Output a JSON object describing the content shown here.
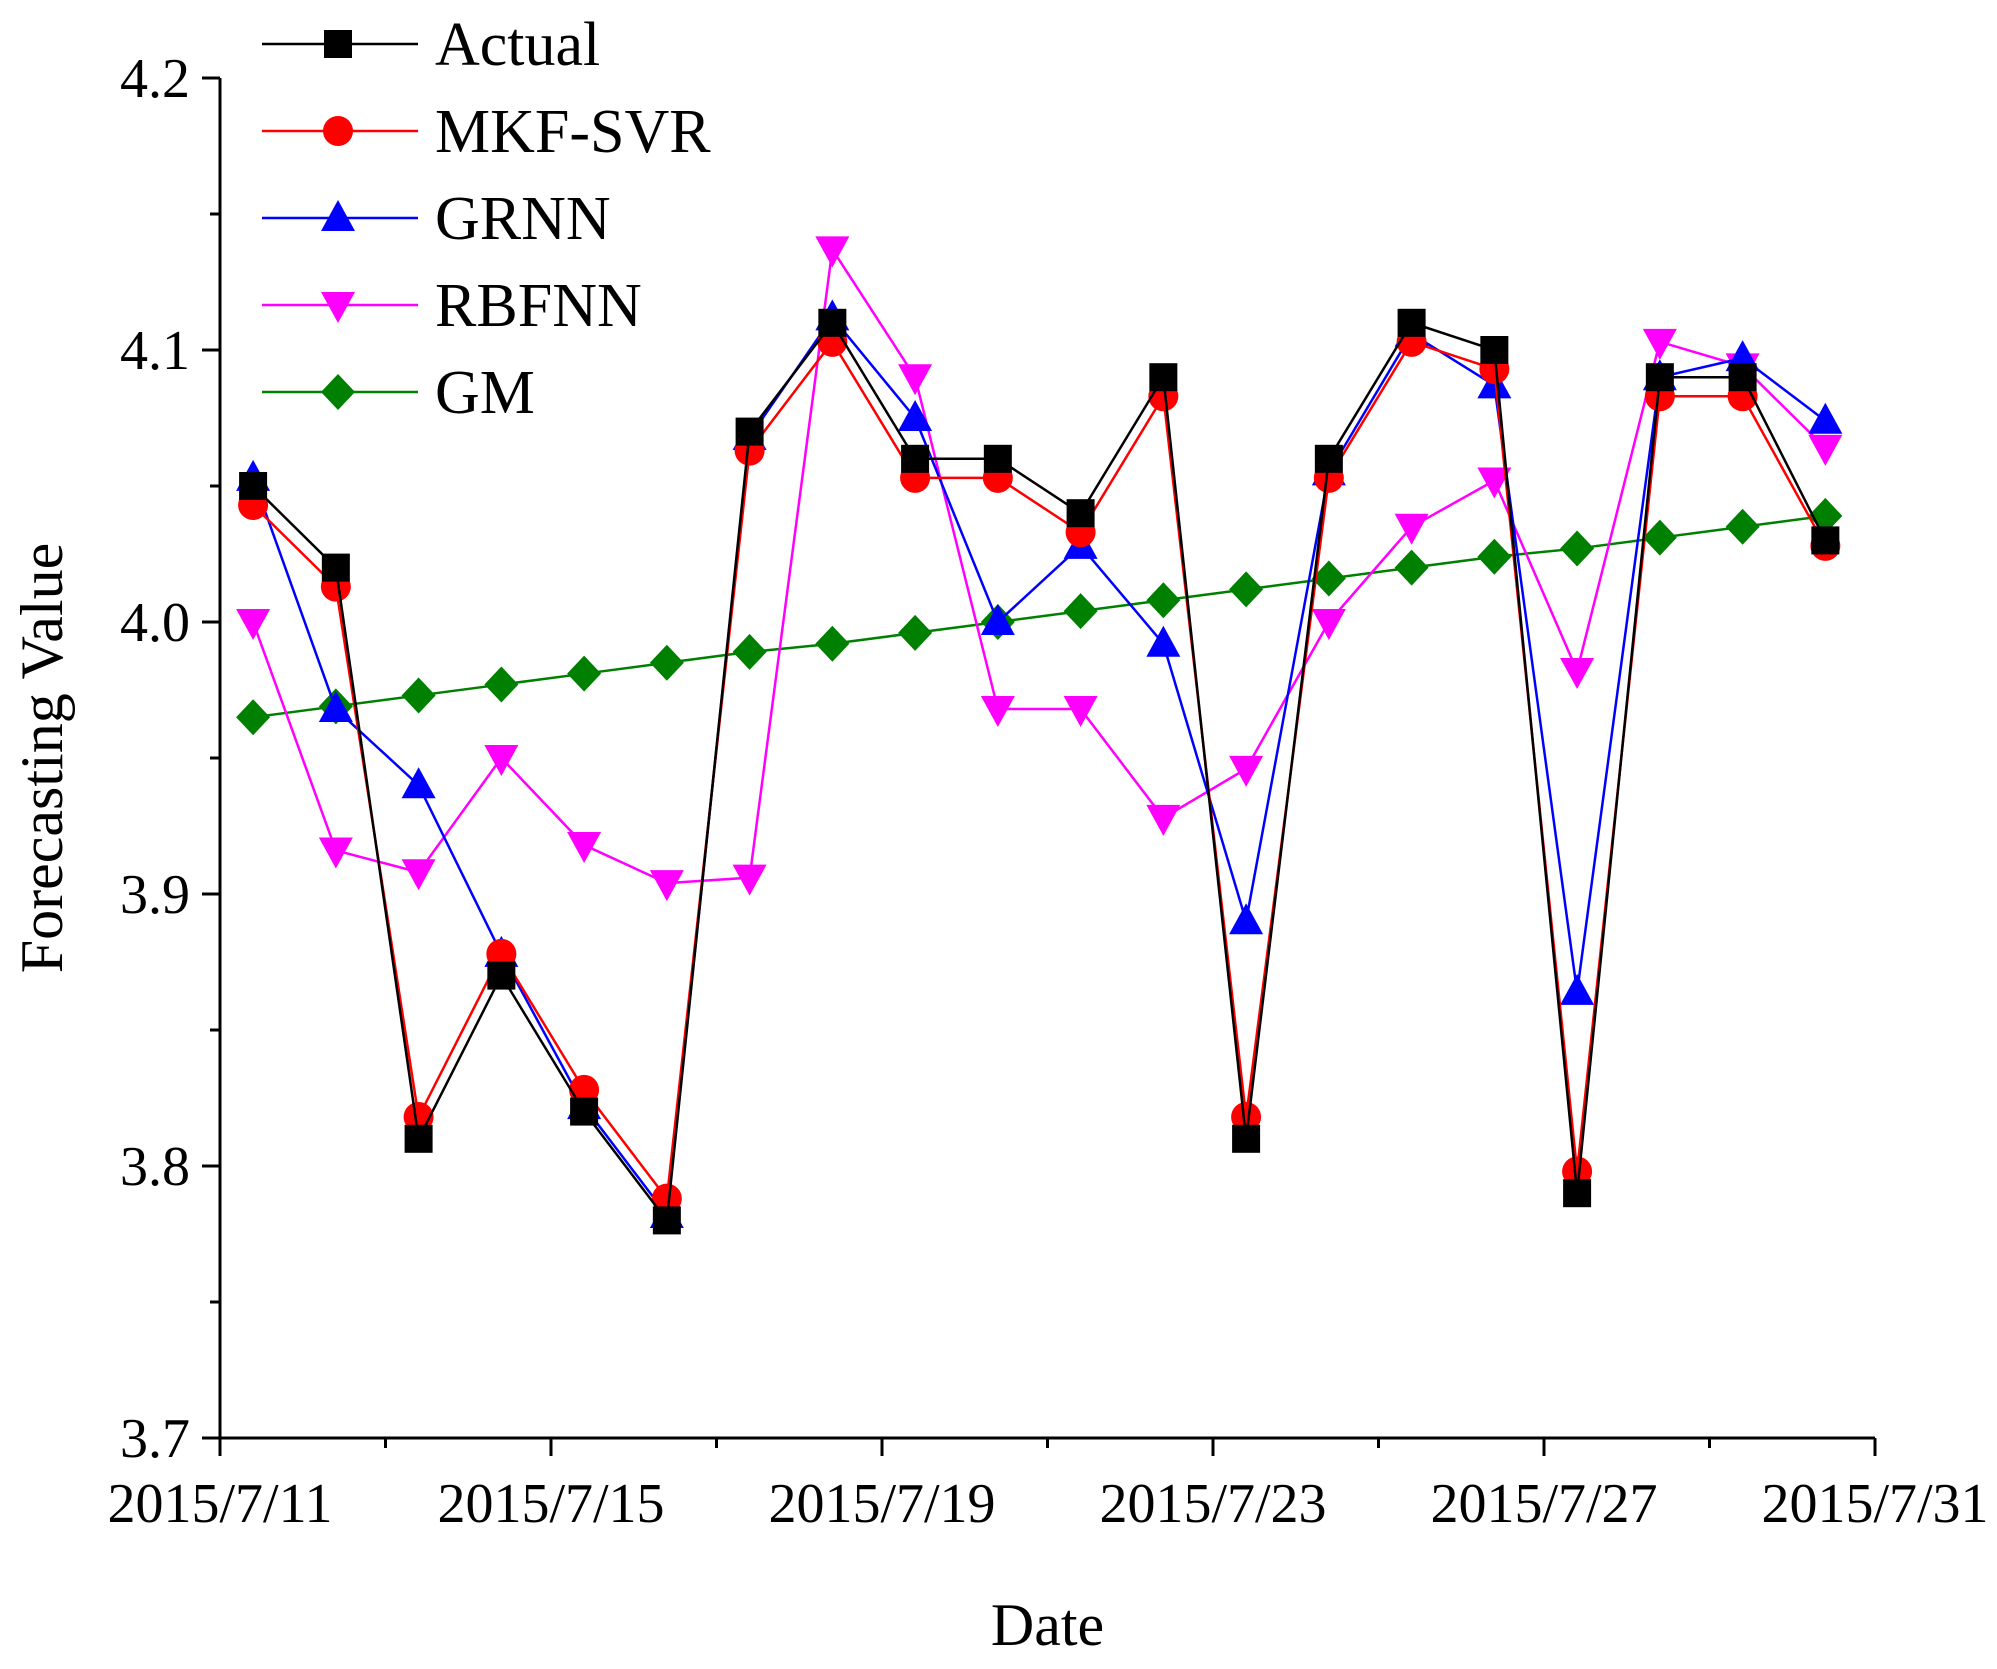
{
  "chart_data": {
    "type": "line",
    "xlabel": "Date",
    "ylabel": "Forecasting Value",
    "x_tick_labels": [
      "2015/7/11",
      "2015/7/15",
      "2015/7/19",
      "2015/7/23",
      "2015/7/27",
      "2015/7/31"
    ],
    "x_tick_values": [
      0,
      4,
      8,
      12,
      16,
      20
    ],
    "x_minor_values": [
      2,
      6,
      10,
      14,
      18
    ],
    "xlim": [
      0,
      20
    ],
    "ylim": [
      3.7,
      4.2
    ],
    "y_major_ticks": [
      3.7,
      3.8,
      3.9,
      4.0,
      4.1,
      4.2
    ],
    "y_tick_labels": [
      "3.7",
      "3.8",
      "3.9",
      "4.0",
      "4.1",
      "4.2"
    ],
    "y_minor_ticks": [
      3.75,
      3.85,
      3.95,
      4.05,
      4.15
    ],
    "x": [
      0.4,
      1.4,
      2.4,
      3.4,
      4.4,
      5.4,
      6.4,
      7.4,
      8.4,
      9.4,
      10.4,
      11.4,
      12.4,
      13.4,
      14.4,
      15.4,
      16.4,
      17.4,
      18.4,
      19.4
    ],
    "series": [
      {
        "name": "Actual",
        "color": "#000000",
        "marker": "square",
        "values": [
          4.05,
          4.02,
          3.81,
          3.87,
          3.82,
          3.78,
          4.07,
          4.11,
          4.06,
          4.06,
          4.04,
          4.09,
          3.81,
          4.06,
          4.11,
          4.1,
          3.79,
          4.09,
          4.09,
          4.03
        ]
      },
      {
        "name": "MKF-SVR",
        "color": "#ff0000",
        "marker": "circle",
        "values": [
          4.043,
          4.013,
          3.818,
          3.878,
          3.828,
          3.788,
          4.063,
          4.103,
          4.053,
          4.053,
          4.033,
          4.083,
          3.818,
          4.053,
          4.103,
          4.093,
          3.798,
          4.083,
          4.083,
          4.028
        ]
      },
      {
        "name": "GRNN",
        "color": "#0000ff",
        "marker": "triangle-up",
        "values": [
          4.053,
          3.968,
          3.94,
          3.878,
          3.822,
          3.782,
          4.068,
          4.112,
          4.075,
          4.0,
          4.028,
          3.992,
          3.89,
          4.055,
          4.106,
          4.087,
          3.864,
          4.09,
          4.097,
          4.074
        ]
      },
      {
        "name": "RBFNN",
        "color": "#ff00ff",
        "marker": "triangle-down",
        "values": [
          4.0,
          3.916,
          3.908,
          3.95,
          3.918,
          3.904,
          3.906,
          4.137,
          4.09,
          3.968,
          3.968,
          3.928,
          3.946,
          4.0,
          4.035,
          4.052,
          3.982,
          4.103,
          4.094,
          4.064
        ]
      },
      {
        "name": "GM",
        "color": "#008000",
        "marker": "diamond",
        "values": [
          3.965,
          3.969,
          3.973,
          3.977,
          3.981,
          3.985,
          3.989,
          3.992,
          3.996,
          4.0,
          4.004,
          4.008,
          4.012,
          4.016,
          4.02,
          4.024,
          4.027,
          4.031,
          4.035,
          4.039
        ]
      }
    ],
    "legend_position": "top-left",
    "grid": false
  }
}
